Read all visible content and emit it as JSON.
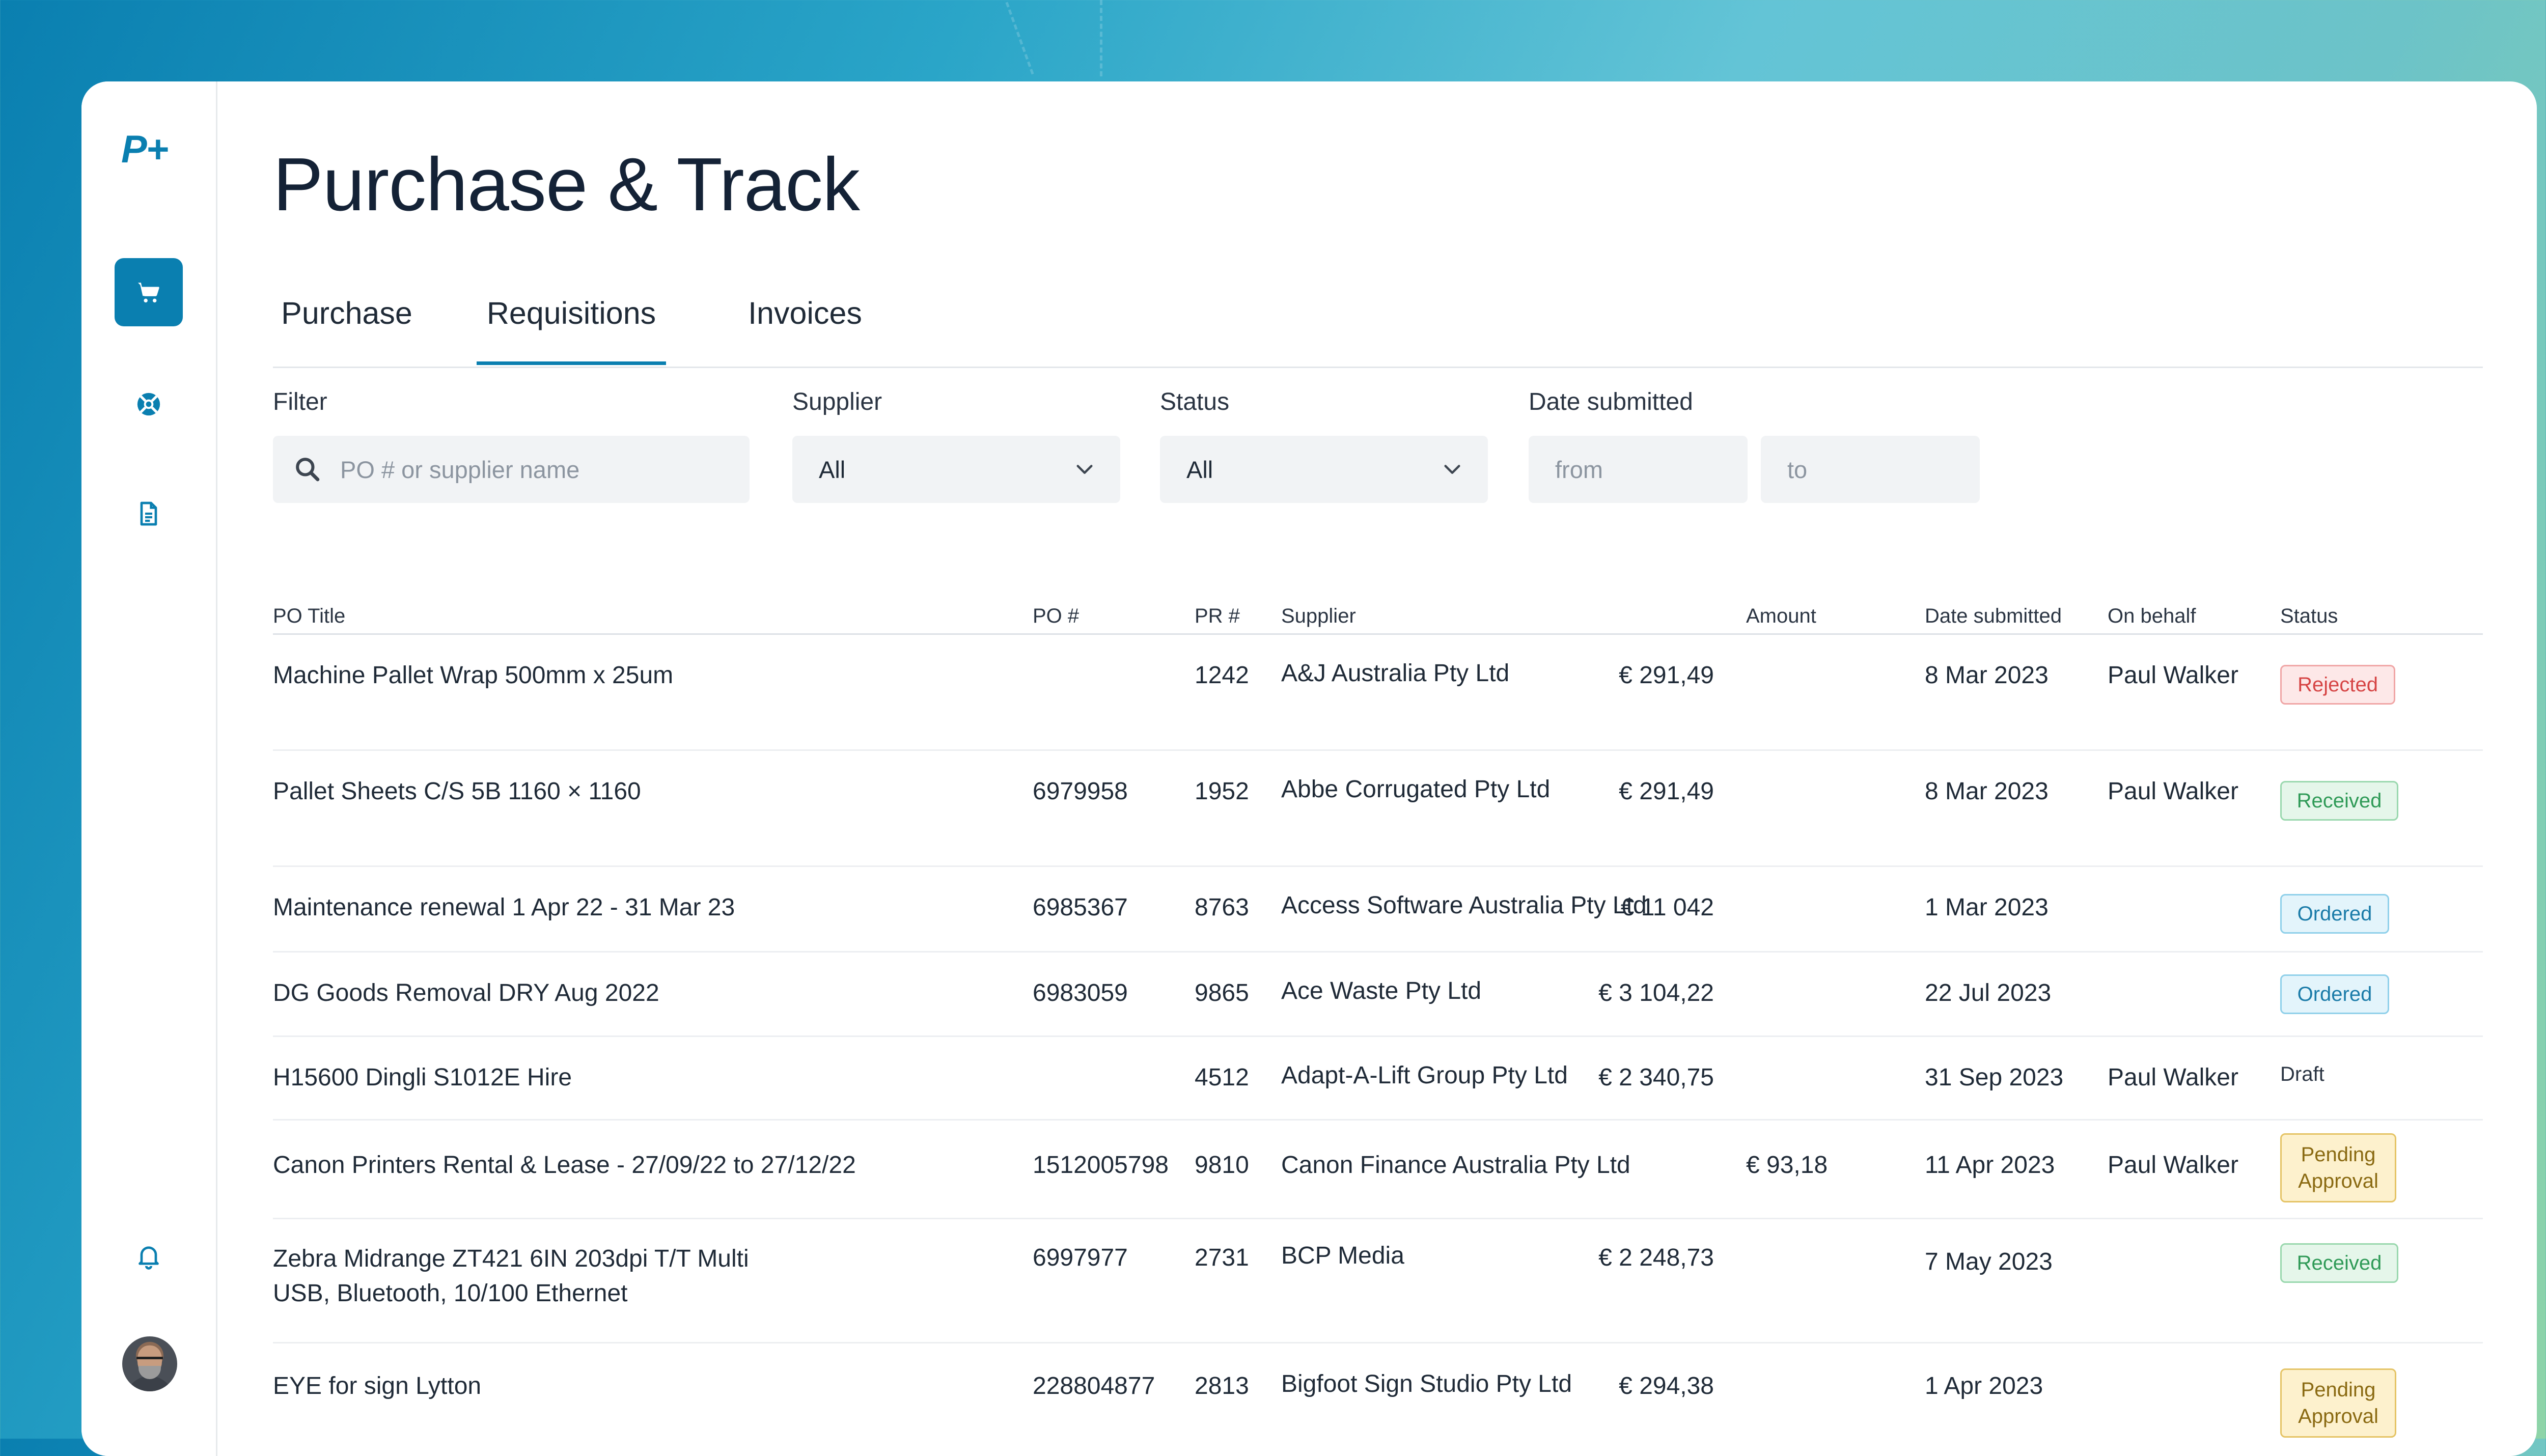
{
  "app": {
    "logo": "P+",
    "title": "Purchase & Track"
  },
  "sidebar": {
    "items": [
      {
        "name": "cart",
        "icon": "cart-icon",
        "active": true
      },
      {
        "name": "support",
        "icon": "lifebuoy-icon",
        "active": false
      },
      {
        "name": "documents",
        "icon": "document-icon",
        "active": false
      },
      {
        "name": "notifications",
        "icon": "bell-icon",
        "active": false
      }
    ]
  },
  "tabs": [
    {
      "label": "Purchase",
      "active": false
    },
    {
      "label": "Requisitions",
      "active": true
    },
    {
      "label": "Invoices",
      "active": false
    }
  ],
  "filters": {
    "filter": {
      "label": "Filter",
      "placeholder": "PO # or supplier name",
      "value": ""
    },
    "supplier": {
      "label": "Supplier",
      "value": "All"
    },
    "status": {
      "label": "Status",
      "value": "All"
    },
    "date": {
      "label": "Date submitted",
      "from_placeholder": "from",
      "to_placeholder": "to"
    }
  },
  "table": {
    "columns": [
      "PO Title",
      "PO #",
      "PR #",
      "Supplier",
      "Amount",
      "Date submitted",
      "On behalf",
      "Status"
    ],
    "rows": [
      {
        "title": "Machine Pallet Wrap 500mm x 25um",
        "po": "",
        "pr": "1242",
        "supplier": "A&J Australia Pty Ltd",
        "amount": "€ 291,49",
        "date": "8 Mar 2023",
        "behalf": "Paul Walker",
        "status": "Rejected"
      },
      {
        "title": "Pallet Sheets C/S 5B 1160 × 1160",
        "po": "6979958",
        "pr": "1952",
        "supplier": "Abbe Corrugated Pty Ltd",
        "amount": "€ 291,49",
        "date": "8 Mar 2023",
        "behalf": "Paul Walker",
        "status": "Received"
      },
      {
        "title": "Maintenance renewal 1 Apr 22 - 31 Mar 23",
        "po": "6985367",
        "pr": "8763",
        "supplier": "Access Software Australia Pty Ltd",
        "amount": "€ 11 042",
        "date": "1 Mar 2023",
        "behalf": "",
        "status": "Ordered"
      },
      {
        "title": "DG Goods Removal DRY Aug 2022",
        "po": "6983059",
        "pr": "9865",
        "supplier": "Ace Waste Pty Ltd",
        "amount": "€ 3 104,22",
        "date": "22 Jul 2023",
        "behalf": "",
        "status": "Ordered"
      },
      {
        "title": "H15600 Dingli S1012E Hire",
        "po": "",
        "pr": "4512",
        "supplier": "Adapt-A-Lift Group Pty Ltd",
        "amount": "€ 2 340,75",
        "date": "31 Sep 2023",
        "behalf": "Paul Walker",
        "status": "Draft"
      },
      {
        "title": "Canon Printers Rental & Lease - 27/09/22 to 27/12/22",
        "po": "1512005798",
        "pr": "9810",
        "supplier": "Canon Finance Australia Pty Ltd",
        "amount": "€ 93,18",
        "date": "11 Apr 2023",
        "behalf": "Paul Walker",
        "status_line1": "Pending",
        "status_line2": "Approval"
      },
      {
        "title_line1": "Zebra Midrange ZT421 6IN 203dpi T/T Multi",
        "title_line2": "USB, Bluetooth, 10/100 Ethernet",
        "po": "6997977",
        "pr": "2731",
        "supplier": "BCP Media",
        "amount": "€ 2 248,73",
        "date": "7 May 2023",
        "behalf": "",
        "status": "Received"
      },
      {
        "title": "EYE for sign Lytton",
        "po": "228804877",
        "pr": "2813",
        "supplier": "Bigfoot Sign Studio Pty Ltd",
        "amount": "€ 294,38",
        "date": "1 Apr 2023",
        "behalf": "",
        "status_line1": "Pending",
        "status_line2": "Approval"
      }
    ]
  },
  "colors": {
    "accent": "#0a7fb0",
    "rejected": "#d64545",
    "received": "#2f9a57",
    "ordered": "#1a7ba8",
    "pending": "#8a6a12"
  }
}
